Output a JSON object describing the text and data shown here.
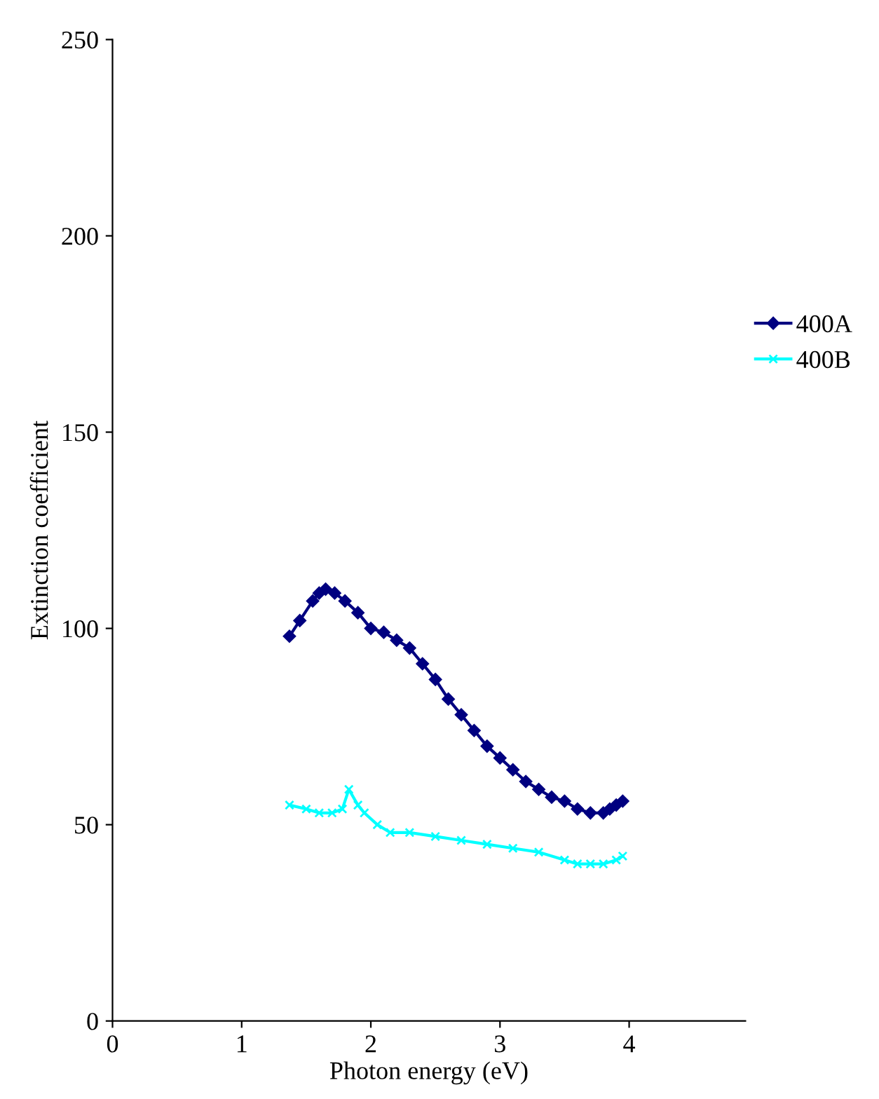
{
  "chart_data": {
    "type": "line",
    "xlabel": "Photon energy (eV)",
    "ylabel": "Extinction coefficient",
    "xlim": [
      0,
      4.9
    ],
    "xticks": [
      0,
      1,
      2,
      3,
      4
    ],
    "ylim": [
      0,
      250
    ],
    "yticks": [
      0,
      50,
      100,
      150,
      200,
      250
    ],
    "legend": "right",
    "grid": false,
    "series": [
      {
        "name": "400A",
        "color": "#000080",
        "marker": "diamond",
        "x": [
          1.37,
          1.45,
          1.55,
          1.6,
          1.65,
          1.72,
          1.8,
          1.9,
          2.0,
          2.1,
          2.2,
          2.3,
          2.4,
          2.5,
          2.6,
          2.7,
          2.8,
          2.9,
          3.0,
          3.1,
          3.2,
          3.3,
          3.4,
          3.5,
          3.6,
          3.7,
          3.8,
          3.85,
          3.9,
          3.95
        ],
        "values": [
          98,
          102,
          107,
          109,
          110,
          109,
          107,
          104,
          100,
          99,
          97,
          95,
          91,
          87,
          82,
          78,
          74,
          70,
          67,
          64,
          61,
          59,
          57,
          56,
          54,
          53,
          53,
          54,
          55,
          56
        ]
      },
      {
        "name": "400B",
        "color": "#00ffff",
        "marker": "cross",
        "x": [
          1.37,
          1.5,
          1.6,
          1.7,
          1.78,
          1.83,
          1.9,
          1.95,
          2.05,
          2.15,
          2.3,
          2.5,
          2.7,
          2.9,
          3.1,
          3.3,
          3.5,
          3.6,
          3.7,
          3.8,
          3.9,
          3.95
        ],
        "values": [
          55,
          54,
          53,
          53,
          54,
          59,
          55,
          53,
          50,
          48,
          48,
          47,
          46,
          45,
          44,
          43,
          41,
          40,
          40,
          40,
          41,
          42
        ]
      }
    ]
  }
}
